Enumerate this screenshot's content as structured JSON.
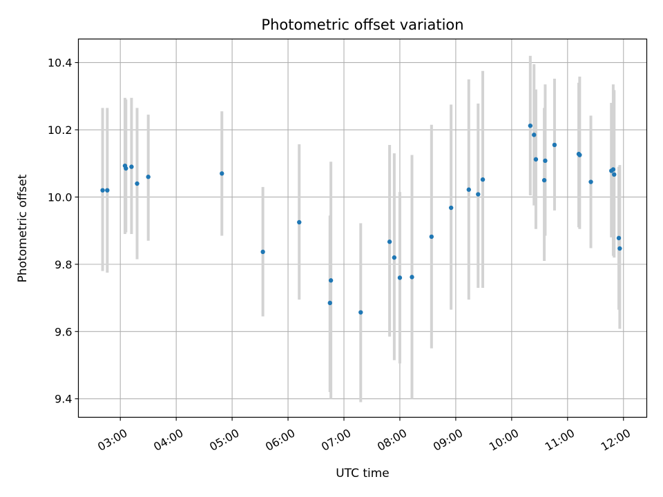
{
  "chart_data": {
    "type": "scatter",
    "title": "Photometric offset variation",
    "xlabel": "UTC time",
    "ylabel": "Photometric offset",
    "x_ticks": [
      "03:00",
      "04:00",
      "05:00",
      "06:00",
      "07:00",
      "08:00",
      "09:00",
      "10:00",
      "11:00",
      "12:00"
    ],
    "y_ticks": [
      "9.4",
      "9.6",
      "9.8",
      "10.0",
      "10.2",
      "10.4"
    ],
    "xlim": [
      "02:15",
      "12:25"
    ],
    "ylim": [
      9.345,
      10.47
    ],
    "grid": true,
    "marker_color": "#1f77b4",
    "errorbar_color": "#d3d3d3",
    "points": [
      {
        "t": "02:41",
        "y": 10.02,
        "lo": 9.78,
        "hi": 10.265
      },
      {
        "t": "02:46",
        "y": 10.02,
        "lo": 9.775,
        "hi": 10.265
      },
      {
        "t": "03:05",
        "y": 10.093,
        "lo": 9.89,
        "hi": 10.295
      },
      {
        "t": "03:06",
        "y": 10.085,
        "lo": 9.895,
        "hi": 10.29
      },
      {
        "t": "03:12",
        "y": 10.09,
        "lo": 9.89,
        "hi": 10.295
      },
      {
        "t": "03:18",
        "y": 10.04,
        "lo": 9.815,
        "hi": 10.265
      },
      {
        "t": "03:30",
        "y": 10.06,
        "lo": 9.87,
        "hi": 10.245
      },
      {
        "t": "04:49",
        "y": 10.07,
        "lo": 9.885,
        "hi": 10.255
      },
      {
        "t": "05:33",
        "y": 9.837,
        "lo": 9.645,
        "hi": 10.03
      },
      {
        "t": "06:12",
        "y": 9.925,
        "lo": 9.695,
        "hi": 10.157
      },
      {
        "t": "06:45",
        "y": 9.685,
        "lo": 9.42,
        "hi": 9.945
      },
      {
        "t": "06:46",
        "y": 9.752,
        "lo": 9.4,
        "hi": 10.105
      },
      {
        "t": "07:18",
        "y": 9.657,
        "lo": 9.39,
        "hi": 9.922
      },
      {
        "t": "07:49",
        "y": 9.867,
        "lo": 9.585,
        "hi": 10.155
      },
      {
        "t": "07:54",
        "y": 9.82,
        "lo": 9.515,
        "hi": 10.13
      },
      {
        "t": "08:00",
        "y": 9.76,
        "lo": 9.505,
        "hi": 10.015
      },
      {
        "t": "08:13",
        "y": 9.762,
        "lo": 9.4,
        "hi": 10.125
      },
      {
        "t": "08:34",
        "y": 9.882,
        "lo": 9.55,
        "hi": 10.215
      },
      {
        "t": "08:55",
        "y": 9.968,
        "lo": 9.665,
        "hi": 10.275
      },
      {
        "t": "09:14",
        "y": 10.022,
        "lo": 9.695,
        "hi": 10.35
      },
      {
        "t": "09:24",
        "y": 10.008,
        "lo": 9.73,
        "hi": 10.278
      },
      {
        "t": "09:29",
        "y": 10.052,
        "lo": 9.73,
        "hi": 10.375
      },
      {
        "t": "10:20",
        "y": 10.212,
        "lo": 10.005,
        "hi": 10.42
      },
      {
        "t": "10:24",
        "y": 10.185,
        "lo": 9.975,
        "hi": 10.395
      },
      {
        "t": "10:26",
        "y": 10.112,
        "lo": 9.905,
        "hi": 10.32
      },
      {
        "t": "10:35",
        "y": 10.05,
        "lo": 9.81,
        "hi": 10.265
      },
      {
        "t": "10:36",
        "y": 10.108,
        "lo": 9.885,
        "hi": 10.335
      },
      {
        "t": "10:46",
        "y": 10.155,
        "lo": 9.96,
        "hi": 10.352
      },
      {
        "t": "11:12",
        "y": 10.128,
        "lo": 9.91,
        "hi": 10.34
      },
      {
        "t": "11:13",
        "y": 10.125,
        "lo": 9.905,
        "hi": 10.358
      },
      {
        "t": "11:25",
        "y": 10.045,
        "lo": 9.848,
        "hi": 10.242
      },
      {
        "t": "11:47",
        "y": 10.078,
        "lo": 9.88,
        "hi": 10.28
      },
      {
        "t": "11:49",
        "y": 10.082,
        "lo": 9.825,
        "hi": 10.335
      },
      {
        "t": "11:50",
        "y": 10.067,
        "lo": 9.82,
        "hi": 10.318
      },
      {
        "t": "11:55",
        "y": 9.878,
        "lo": 9.665,
        "hi": 10.09
      },
      {
        "t": "11:56",
        "y": 9.847,
        "lo": 9.608,
        "hi": 10.095
      }
    ]
  }
}
